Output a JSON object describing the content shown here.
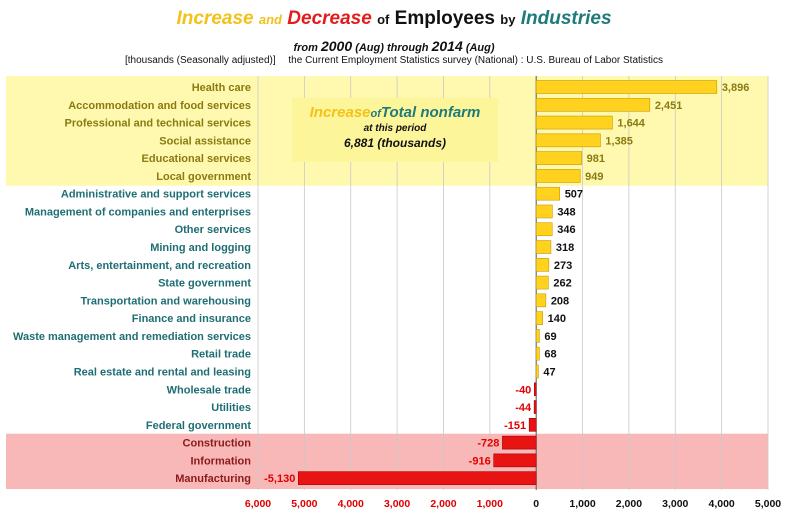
{
  "header": {
    "title_increase": "Increase",
    "title_and": "and",
    "title_decrease": "Decrease",
    "title_of": "of",
    "title_employees": "Employees",
    "title_by": "by",
    "title_industries": "Industries",
    "sub_from": "from",
    "sub_year_start": "2000",
    "sub_aug_start": "(Aug)",
    "sub_through": "through",
    "sub_year_end": "2014",
    "sub_aug_end": "(Aug)",
    "unit_note": "[thousands (Seasonally adjusted)]",
    "source_note": "the Current Employment Statistics survey (National) : U.S. Bureau of Labor Statistics"
  },
  "callout": {
    "increase": "Increase",
    "of": "of",
    "total": "Total nonfarm",
    "period": "at this period",
    "value_text": "6,881 (thousands)"
  },
  "colors": {
    "increase_bar": "#ffd21f",
    "increase_bar_edge": "#c89a00",
    "decrease_bar": "#e81414",
    "decrease_bar_edge": "#a00000",
    "increase_band": "#fff9b0",
    "decrease_band": "#f9b8b8",
    "label_teal": "#1f6e74",
    "label_olive": "#8a7a10",
    "label_red": "#8b1a1a",
    "value_red": "#e00000",
    "tick_red": "#e00000",
    "title_yellow": "#f2c21b",
    "title_red": "#e31d1d",
    "title_teal": "#1f7a7a"
  },
  "chart_data": {
    "type": "bar",
    "orientation": "horizontal",
    "title": "Increase and Decrease of Employees by Industries",
    "subtitle": "from 2000 (Aug) through 2014 (Aug)",
    "unit": "thousands (Seasonally adjusted)",
    "xlim": [
      -6000,
      5000
    ],
    "xticks": [
      -6000,
      -5000,
      -4000,
      -3000,
      -2000,
      -1000,
      0,
      1000,
      2000,
      3000,
      4000,
      5000
    ],
    "xtick_labels": [
      "6,000",
      "5,000",
      "4,000",
      "3,000",
      "2,000",
      "1,000",
      "0",
      "1,000",
      "2,000",
      "3,000",
      "4,000",
      "5,000"
    ],
    "categories": [
      "Health care",
      "Accommodation and food services",
      "Professional and technical services",
      "Social assistance",
      "Educational services",
      "Local government",
      "Administrative and support services",
      "Management of companies and enterprises",
      "Other services",
      "Mining and logging",
      "Arts, entertainment, and recreation",
      "State government",
      "Transportation and warehousing",
      "Finance and insurance",
      "Waste management and remediation services",
      "Retail trade",
      "Real estate and rental and leasing",
      "Wholesale trade",
      "Utilities",
      "Federal government",
      "Construction",
      "Information",
      "Manufacturing"
    ],
    "values": [
      3896,
      2451,
      1644,
      1385,
      981,
      949,
      507,
      348,
      346,
      318,
      273,
      262,
      208,
      140,
      69,
      68,
      47,
      -40,
      -44,
      -151,
      -728,
      -916,
      -5130
    ],
    "value_labels": [
      "3,896",
      "2,451",
      "1,644",
      "1,385",
      "981",
      "949",
      "507",
      "348",
      "346",
      "318",
      "273",
      "262",
      "208",
      "140",
      "69",
      "68",
      "47",
      "-40",
      "-44",
      "-151",
      "-728",
      "-916",
      "-5,130"
    ],
    "highlight_top_count": 6,
    "highlight_bottom_count": 3
  }
}
